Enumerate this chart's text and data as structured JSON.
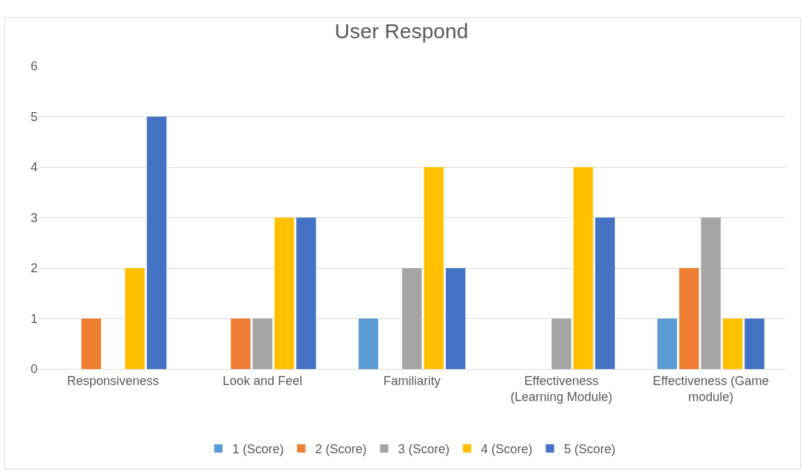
{
  "chart_data": {
    "type": "bar",
    "title": "User Respond",
    "categories": [
      "Responsiveness",
      "Look and Feel",
      "Familiarity",
      "Effectiveness (Learning Module)",
      "Effectiveness (Game module)"
    ],
    "series": [
      {
        "name": "1 (Score)",
        "color": "#5b9bd5",
        "values": [
          0,
          0,
          1,
          0,
          1
        ]
      },
      {
        "name": "2 (Score)",
        "color": "#ed7d31",
        "values": [
          1,
          1,
          0,
          0,
          2
        ]
      },
      {
        "name": "3 (Score)",
        "color": "#a5a5a5",
        "values": [
          0,
          1,
          2,
          1,
          3
        ]
      },
      {
        "name": "4 (Score)",
        "color": "#ffc000",
        "values": [
          2,
          3,
          4,
          4,
          1
        ]
      },
      {
        "name": "5 (Score)",
        "color": "#4472c4",
        "values": [
          5,
          3,
          2,
          3,
          1
        ]
      }
    ],
    "ylim": [
      0,
      6
    ],
    "yticks": [
      0,
      1,
      2,
      3,
      4,
      5,
      6
    ],
    "grid": "y",
    "legend": "bottom"
  }
}
